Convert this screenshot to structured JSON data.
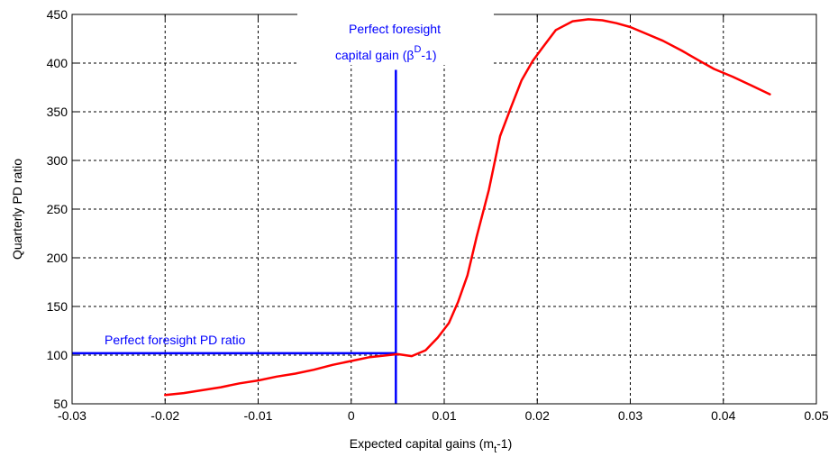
{
  "chart_data": {
    "type": "line",
    "title": "",
    "xlabel": "Expected capital gains (m",
    "xlabel_sub": "t",
    "xlabel_tail": "-1)",
    "ylabel": "Quarterly PD ratio",
    "xlim": [
      -0.03,
      0.05
    ],
    "ylim": [
      50,
      450
    ],
    "xticks": [
      -0.03,
      -0.02,
      -0.01,
      0,
      0.01,
      0.02,
      0.03,
      0.04,
      0.05
    ],
    "xtick_labels": [
      "-0.03",
      "-0.02",
      "-0.01",
      "0",
      "0.01",
      "0.02",
      "0.03",
      "0.04",
      "0.05"
    ],
    "yticks": [
      50,
      100,
      150,
      200,
      250,
      300,
      350,
      400,
      450
    ],
    "ytick_labels": [
      "50",
      "100",
      "150",
      "200",
      "250",
      "300",
      "350",
      "400",
      "450"
    ],
    "grid": true,
    "colors": {
      "curve": "#ff0000",
      "annotation": "#0000ff",
      "grid": "#000000"
    },
    "series": [
      {
        "x": [
          -0.02,
          -0.018,
          -0.016,
          -0.014,
          -0.012,
          -0.01,
          -0.008,
          -0.006,
          -0.004,
          -0.002,
          0,
          0.002,
          0.004,
          0.005,
          0.0065,
          0.008,
          0.0093,
          0.0105,
          0.0115,
          0.0125,
          0.0135,
          0.0148,
          0.016,
          0.0172,
          0.0183,
          0.0195,
          0.0205,
          0.022,
          0.0238,
          0.0255,
          0.027,
          0.0285,
          0.03,
          0.0315,
          0.0335,
          0.0355,
          0.0375,
          0.039,
          0.041,
          0.043,
          0.045
        ],
        "y": [
          59,
          61,
          64,
          67,
          71,
          74,
          78,
          81,
          85,
          90,
          94,
          98,
          100,
          101,
          99,
          105,
          118,
          133,
          155,
          182,
          222,
          270,
          325,
          355,
          382,
          402,
          415,
          434,
          443,
          445,
          444,
          441,
          437,
          431,
          423,
          413,
          402,
          394,
          386,
          377,
          368
        ]
      }
    ],
    "reference_lines": {
      "vertical": {
        "x": 0.0048,
        "y_top": 393
      },
      "horizontal": {
        "y": 102,
        "x_end": 0.0048
      }
    },
    "annotations": {
      "vertical_line_label_line1": "Perfect foresight",
      "vertical_line_label_line2": "capital gain (β",
      "vertical_line_label_sup": "D",
      "vertical_line_label_tail": "-1)",
      "horizontal_line_label": "Perfect foresight PD ratio"
    }
  }
}
